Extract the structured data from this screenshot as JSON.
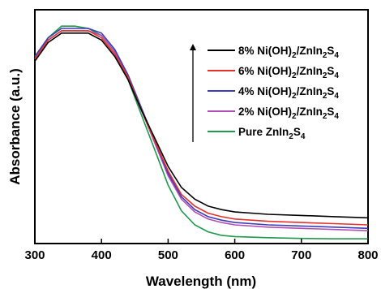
{
  "chart_data": {
    "type": "line",
    "title": "",
    "xlabel": "Wavelength (nm)",
    "ylabel": "Absorbance (a.u.)",
    "xlim": [
      300,
      800
    ],
    "ylim": [
      0,
      1.0
    ],
    "xticks": [
      "300",
      "400",
      "500",
      "600",
      "700",
      "800"
    ],
    "show_y_ticks": false,
    "grid": false,
    "legend_position": "top-right",
    "legend_arrow": "up",
    "series": [
      {
        "name_main": "8% Ni(OH)",
        "name_sub1": "2",
        "name_mid": "/ZnIn",
        "name_sub2": "2",
        "name_mid2": "S",
        "name_sub3": "4",
        "color": "#000000",
        "x": [
          300,
          320,
          340,
          360,
          380,
          400,
          420,
          440,
          460,
          480,
          500,
          520,
          540,
          560,
          580,
          600,
          650,
          700,
          750,
          800
        ],
        "y": [
          0.78,
          0.86,
          0.9,
          0.9,
          0.9,
          0.87,
          0.8,
          0.7,
          0.57,
          0.45,
          0.33,
          0.24,
          0.19,
          0.16,
          0.145,
          0.135,
          0.125,
          0.12,
          0.115,
          0.11
        ]
      },
      {
        "name_main": "6% Ni(OH)",
        "name_sub1": "2",
        "name_mid": "/ZnIn",
        "name_sub2": "2",
        "name_mid2": "S",
        "name_sub3": "4",
        "color": "#e8302a",
        "x": [
          300,
          320,
          340,
          360,
          380,
          400,
          420,
          440,
          460,
          480,
          500,
          520,
          540,
          560,
          580,
          600,
          650,
          700,
          750,
          800
        ],
        "y": [
          0.79,
          0.87,
          0.91,
          0.91,
          0.91,
          0.88,
          0.81,
          0.71,
          0.57,
          0.44,
          0.31,
          0.21,
          0.16,
          0.13,
          0.115,
          0.105,
          0.095,
          0.09,
          0.085,
          0.08
        ]
      },
      {
        "name_main": "4% Ni(OH)",
        "name_sub1": "2",
        "name_mid": "/ZnIn",
        "name_sub2": "2",
        "name_mid2": "S",
        "name_sub3": "4",
        "color": "#3a3db5",
        "x": [
          300,
          320,
          340,
          360,
          380,
          400,
          420,
          440,
          460,
          480,
          500,
          520,
          540,
          560,
          580,
          600,
          650,
          700,
          750,
          800
        ],
        "y": [
          0.8,
          0.88,
          0.92,
          0.92,
          0.92,
          0.9,
          0.83,
          0.72,
          0.58,
          0.44,
          0.3,
          0.2,
          0.145,
          0.115,
          0.1,
          0.09,
          0.08,
          0.075,
          0.07,
          0.065
        ]
      },
      {
        "name_main": "2% Ni(OH)",
        "name_sub1": "2",
        "name_mid": "/ZnIn",
        "name_sub2": "2",
        "name_mid2": "S",
        "name_sub3": "4",
        "color": "#b04fb8",
        "x": [
          300,
          320,
          340,
          360,
          380,
          400,
          420,
          440,
          460,
          480,
          500,
          520,
          540,
          560,
          580,
          600,
          650,
          700,
          750,
          800
        ],
        "y": [
          0.79,
          0.87,
          0.91,
          0.91,
          0.91,
          0.89,
          0.82,
          0.71,
          0.57,
          0.43,
          0.29,
          0.19,
          0.135,
          0.105,
          0.09,
          0.08,
          0.07,
          0.065,
          0.06,
          0.055
        ]
      },
      {
        "name_main": "Pure ZnIn",
        "name_sub1": "2",
        "name_mid": "S",
        "name_sub2": "4",
        "name_mid2": "",
        "name_sub3": "",
        "color": "#1e9a4a",
        "x": [
          300,
          320,
          340,
          360,
          380,
          400,
          420,
          440,
          460,
          480,
          500,
          520,
          540,
          560,
          580,
          600,
          650,
          700,
          750,
          800
        ],
        "y": [
          0.8,
          0.88,
          0.93,
          0.93,
          0.92,
          0.89,
          0.82,
          0.7,
          0.55,
          0.4,
          0.25,
          0.14,
          0.08,
          0.05,
          0.035,
          0.03,
          0.025,
          0.022,
          0.02,
          0.02
        ]
      }
    ]
  }
}
